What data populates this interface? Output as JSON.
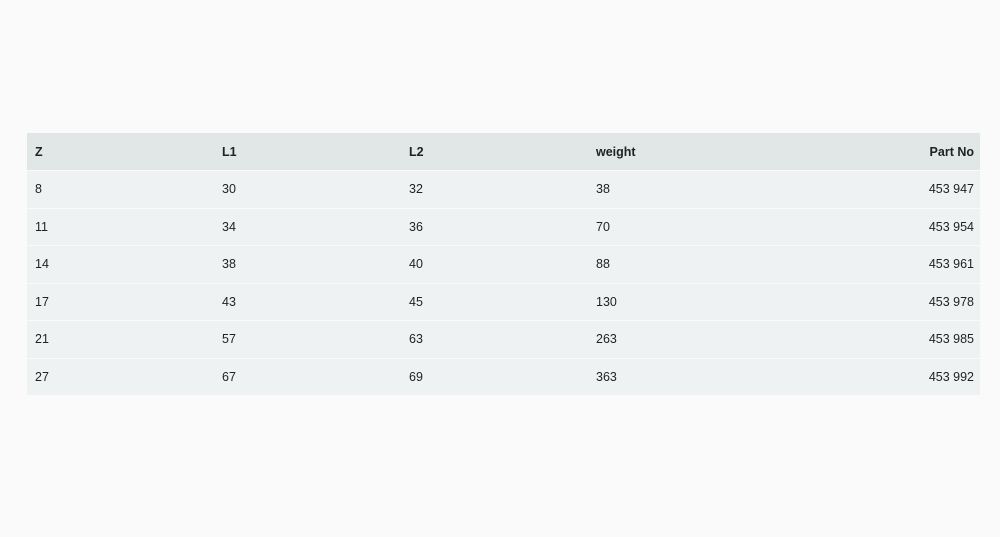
{
  "table": {
    "headers": [
      "Z",
      "L1",
      "L2",
      "weight",
      "Part No"
    ],
    "rows": [
      [
        "8",
        "30",
        "32",
        "38",
        "453 947"
      ],
      [
        "11",
        "34",
        "36",
        "70",
        "453 954"
      ],
      [
        "14",
        "38",
        "40",
        "88",
        "453 961"
      ],
      [
        "17",
        "43",
        "45",
        "130",
        "453 978"
      ],
      [
        "21",
        "57",
        "63",
        "263",
        "453 985"
      ],
      [
        "27",
        "67",
        "69",
        "363",
        "453 992"
      ]
    ]
  }
}
